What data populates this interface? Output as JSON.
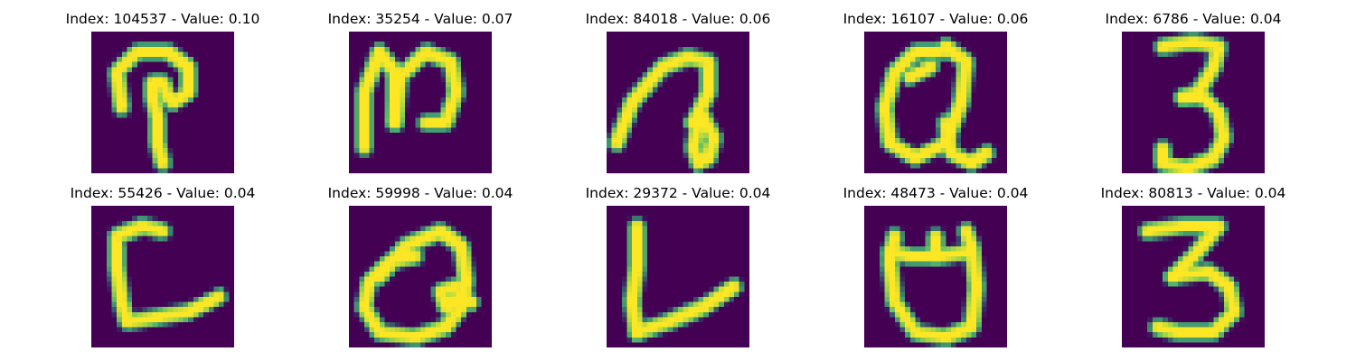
{
  "colors": {
    "background": "#440154",
    "stroke_edge": "#21918c",
    "stroke_mid": "#5ec962",
    "stroke_core": "#fde725"
  },
  "panels": [
    {
      "title": "Index: 104537 - Value: 0.10",
      "strokes": [
        [
          [
            6,
            15
          ],
          [
            5,
            8
          ],
          [
            9,
            4
          ],
          [
            15,
            4
          ],
          [
            19,
            7
          ],
          [
            19,
            12
          ],
          [
            16,
            14
          ]
        ],
        [
          [
            15,
            13
          ],
          [
            14,
            10
          ],
          [
            12,
            10
          ],
          [
            12,
            13
          ],
          [
            13,
            17
          ],
          [
            13,
            22
          ],
          [
            14,
            26
          ]
        ]
      ]
    },
    {
      "title": "Index: 35254 - Value: 0.07",
      "strokes": [
        [
          [
            3,
            23
          ],
          [
            3,
            12
          ],
          [
            6,
            4
          ],
          [
            9,
            8
          ],
          [
            9,
            18
          ]
        ],
        [
          [
            9,
            18
          ],
          [
            10,
            9
          ],
          [
            15,
            4
          ],
          [
            20,
            6
          ],
          [
            21,
            12
          ],
          [
            19,
            18
          ],
          [
            15,
            18
          ]
        ]
      ]
    },
    {
      "title": "Index: 84018 - Value: 0.06",
      "strokes": [
        [
          [
            2,
            22
          ],
          [
            5,
            14
          ],
          [
            11,
            7
          ],
          [
            16,
            5
          ],
          [
            20,
            6
          ],
          [
            20,
            12
          ],
          [
            17,
            18
          ]
        ],
        [
          [
            17,
            18
          ],
          [
            19,
            17
          ],
          [
            21,
            21
          ],
          [
            20,
            25
          ],
          [
            18,
            26
          ],
          [
            17,
            23
          ],
          [
            18,
            18
          ]
        ]
      ]
    },
    {
      "title": "Index: 16107 - Value: 0.06",
      "strokes": [
        [
          [
            15,
            4
          ],
          [
            10,
            4
          ],
          [
            6,
            8
          ],
          [
            4,
            15
          ],
          [
            5,
            22
          ],
          [
            10,
            25
          ],
          [
            16,
            22
          ],
          [
            19,
            14
          ],
          [
            20,
            6
          ],
          [
            16,
            3
          ]
        ],
        [
          [
            9,
            9
          ],
          [
            13,
            7
          ]
        ],
        [
          [
            16,
            18
          ],
          [
            17,
            24
          ],
          [
            21,
            26
          ],
          [
            24,
            24
          ]
        ]
      ]
    },
    {
      "title": "Index: 6786 - Value: 0.04",
      "strokes": [
        [
          [
            8,
            3
          ],
          [
            14,
            2
          ],
          [
            19,
            3
          ],
          [
            18,
            7
          ],
          [
            15,
            12
          ],
          [
            12,
            13
          ]
        ],
        [
          [
            12,
            13
          ],
          [
            16,
            13
          ],
          [
            19,
            16
          ],
          [
            20,
            21
          ],
          [
            18,
            25
          ],
          [
            13,
            27
          ],
          [
            8,
            26
          ],
          [
            8,
            23
          ]
        ]
      ]
    },
    {
      "title": "Index: 55426 - Value: 0.04",
      "strokes": [
        [
          [
            14,
            5
          ],
          [
            10,
            4
          ],
          [
            5,
            6
          ],
          [
            5,
            12
          ],
          [
            6,
            19
          ],
          [
            7,
            23
          ],
          [
            13,
            22
          ],
          [
            19,
            21
          ],
          [
            25,
            18
          ]
        ]
      ]
    },
    {
      "title": "Index: 59998 - Value: 0.04",
      "strokes": [
        [
          [
            6,
            14
          ],
          [
            11,
            8
          ],
          [
            18,
            5
          ],
          [
            22,
            8
          ],
          [
            23,
            15
          ],
          [
            22,
            20
          ],
          [
            19,
            24
          ],
          [
            13,
            26
          ],
          [
            6,
            25
          ],
          [
            3,
            20
          ],
          [
            4,
            15
          ],
          [
            8,
            11
          ],
          [
            13,
            10
          ]
        ],
        [
          [
            21,
            16
          ],
          [
            18,
            17
          ],
          [
            19,
            20
          ],
          [
            22,
            18
          ],
          [
            24,
            19
          ]
        ]
      ]
    },
    {
      "title": "Index: 29372 - Value: 0.04",
      "strokes": [
        [
          [
            6,
            4
          ],
          [
            6,
            12
          ],
          [
            5,
            19
          ],
          [
            6,
            25
          ]
        ],
        [
          [
            6,
            25
          ],
          [
            12,
            23
          ],
          [
            19,
            20
          ],
          [
            25,
            16
          ]
        ]
      ]
    },
    {
      "title": "Index: 48473 - Value: 0.04",
      "strokes": [
        [
          [
            6,
            6
          ],
          [
            5,
            11
          ],
          [
            6,
            19
          ],
          [
            10,
            25
          ],
          [
            16,
            26
          ],
          [
            21,
            24
          ],
          [
            22,
            16
          ],
          [
            21,
            8
          ],
          [
            20,
            5
          ]
        ],
        [
          [
            5,
            9
          ],
          [
            9,
            10
          ],
          [
            15,
            10
          ],
          [
            21,
            9
          ]
        ],
        [
          [
            14,
            6
          ],
          [
            14,
            10
          ]
        ]
      ]
    },
    {
      "title": "Index: 80813 - Value: 0.04",
      "strokes": [
        [
          [
            5,
            5
          ],
          [
            12,
            4
          ],
          [
            19,
            4
          ],
          [
            14,
            10
          ],
          [
            10,
            14
          ]
        ],
        [
          [
            10,
            14
          ],
          [
            17,
            13
          ],
          [
            21,
            16
          ],
          [
            22,
            21
          ],
          [
            18,
            25
          ],
          [
            11,
            25
          ],
          [
            7,
            24
          ]
        ]
      ]
    }
  ]
}
